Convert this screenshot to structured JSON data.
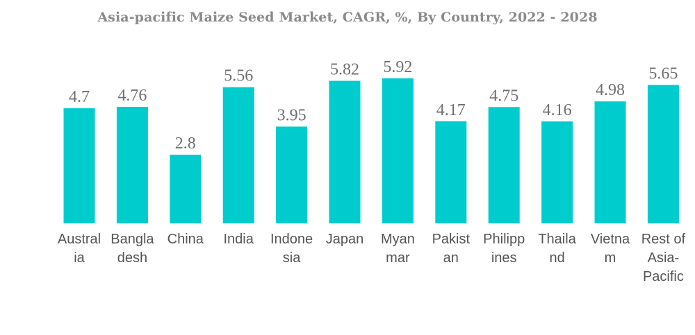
{
  "chart_data": {
    "type": "bar",
    "title": "Asia-pacific Maize Seed Market, CAGR, %, By Country, 2022 - 2028",
    "xlabel": "",
    "ylabel": "",
    "categories": [
      "Australia",
      "Bangladesh",
      "China",
      "India",
      "Indonesia",
      "Japan",
      "Myanmar",
      "Pakistan",
      "Philippines",
      "Thailand",
      "Vietnam",
      "Rest of Asia-Pacific"
    ],
    "category_label_lines": [
      [
        "Austral",
        "ia"
      ],
      [
        "Bangla",
        "desh"
      ],
      [
        "China"
      ],
      [
        "India"
      ],
      [
        "Indone",
        "sia"
      ],
      [
        "Japan"
      ],
      [
        "Myan",
        "mar"
      ],
      [
        "Pakist",
        "an"
      ],
      [
        "Philipp",
        "ines"
      ],
      [
        "Thaila",
        "nd"
      ],
      [
        "Vietna",
        "m"
      ],
      [
        "Rest of",
        "Asia-",
        "Pacific"
      ]
    ],
    "values": [
      4.7,
      4.76,
      2.8,
      5.56,
      3.95,
      5.82,
      5.92,
      4.17,
      4.75,
      4.16,
      4.98,
      5.65
    ],
    "value_labels": [
      "4.7",
      "4.76",
      "2.8",
      "5.56",
      "3.95",
      "5.82",
      "5.92",
      "4.17",
      "4.75",
      "4.16",
      "4.98",
      "5.65"
    ],
    "ylim": [
      0,
      5.92
    ],
    "grid": false,
    "legend": "none",
    "bar_color": "#00cccd"
  }
}
